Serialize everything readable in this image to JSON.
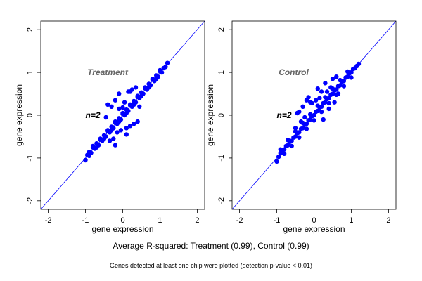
{
  "figure": {
    "subtitle": "Average R-squared: Treatment (0.99), Control (0.99)",
    "footnote": "Genes detected at least one chip were plotted (detection p-value < 0.01)"
  },
  "chart_data": [
    {
      "type": "scatter",
      "title": "",
      "xlabel": "gene expression",
      "ylabel": "gene expression",
      "xlim": [
        -2.2,
        2.2
      ],
      "ylim": [
        -2.2,
        2.2
      ],
      "xticks": [
        -2,
        -1,
        0,
        1,
        2
      ],
      "yticks": [
        -2,
        -1,
        0,
        1,
        2
      ],
      "grid": false,
      "reference_line": {
        "slope": 1,
        "intercept": 0,
        "color": "#0000ff"
      },
      "marker_color": "#0000ff",
      "annotations": [
        {
          "text": "Treatment",
          "x": -0.95,
          "y": 1.0,
          "color": "#666666",
          "style": "bold-italic"
        },
        {
          "text": "n=2",
          "x": -1.0,
          "y": 0.0,
          "color": "#000000",
          "style": "bold-italic"
        }
      ],
      "series": [
        {
          "x": [
            -1.0,
            -0.95,
            -0.9,
            -0.85,
            -0.8,
            -0.75,
            -0.7,
            -0.65,
            -0.6,
            -0.55,
            -0.5,
            -0.45,
            -0.4,
            -0.35,
            -0.3,
            -0.25,
            -0.2,
            -0.15,
            -0.1,
            -0.05,
            0.0,
            0.05,
            0.1,
            0.15,
            0.2,
            0.25,
            0.3,
            0.35,
            0.4,
            0.45,
            0.5,
            0.55,
            0.6,
            0.65,
            0.7,
            0.75,
            0.8,
            0.85,
            0.9,
            0.95,
            1.0,
            1.05,
            1.1,
            1.15,
            1.2,
            -0.9,
            -0.8,
            -0.7,
            -0.6,
            -0.5,
            -0.4,
            -0.3,
            -0.2,
            -0.1,
            0.0,
            0.1,
            0.2,
            0.3,
            0.4,
            0.5,
            0.6,
            0.7,
            0.8,
            0.9,
            1.0,
            -0.2,
            0.2,
            -0.3,
            0.3,
            -0.1,
            0.1,
            -0.4,
            0.4,
            -0.25,
            0.15,
            0.05,
            -0.05,
            0.25,
            -0.15,
            0.35,
            -0.35,
            0.45,
            -0.45,
            0.0,
            0.1,
            -0.1,
            0.2,
            -0.2
          ],
          "y": [
            -1.05,
            -0.93,
            -0.86,
            -0.88,
            -0.75,
            -0.78,
            -0.66,
            -0.7,
            -0.57,
            -0.6,
            -0.47,
            -0.5,
            -0.37,
            -0.4,
            -0.27,
            -0.3,
            -0.17,
            -0.2,
            -0.07,
            -0.1,
            0.03,
            0.0,
            0.13,
            0.1,
            0.23,
            0.2,
            0.33,
            0.3,
            0.43,
            0.4,
            0.53,
            0.5,
            0.63,
            0.6,
            0.73,
            0.7,
            0.83,
            0.8,
            0.93,
            0.9,
            1.03,
            1.0,
            1.1,
            1.13,
            1.22,
            -0.95,
            -0.72,
            -0.75,
            -0.55,
            -0.55,
            -0.35,
            -0.35,
            -0.15,
            -0.15,
            0.05,
            0.05,
            0.25,
            0.25,
            0.45,
            0.45,
            0.65,
            0.65,
            0.85,
            0.85,
            1.05,
            0.35,
            -0.25,
            0.2,
            -0.2,
            0.5,
            -0.45,
            0.25,
            -0.15,
            -0.55,
            0.55,
            0.3,
            -0.35,
            0.6,
            -0.4,
            0.65,
            -0.6,
            0.2,
            -0.05,
            0.18,
            -0.3,
            0.15,
            0.55,
            -0.7
          ]
        }
      ]
    },
    {
      "type": "scatter",
      "title": "",
      "xlabel": "gene expression",
      "ylabel": "gene expression",
      "xlim": [
        -2.2,
        2.2
      ],
      "ylim": [
        -2.2,
        2.2
      ],
      "xticks": [
        -2,
        -1,
        0,
        1,
        2
      ],
      "yticks": [
        -2,
        -1,
        0,
        1,
        2
      ],
      "grid": false,
      "reference_line": {
        "slope": 1,
        "intercept": 0,
        "color": "#0000ff"
      },
      "marker_color": "#0000ff",
      "annotations": [
        {
          "text": "Control",
          "x": -0.95,
          "y": 1.0,
          "color": "#666666",
          "style": "bold-italic"
        },
        {
          "text": "n=2",
          "x": -1.0,
          "y": 0.0,
          "color": "#000000",
          "style": "bold-italic"
        }
      ],
      "series": [
        {
          "x": [
            -1.0,
            -0.95,
            -0.9,
            -0.85,
            -0.8,
            -0.75,
            -0.7,
            -0.65,
            -0.6,
            -0.55,
            -0.5,
            -0.45,
            -0.4,
            -0.35,
            -0.3,
            -0.25,
            -0.2,
            -0.15,
            -0.1,
            -0.05,
            0.0,
            0.05,
            0.1,
            0.15,
            0.2,
            0.25,
            0.3,
            0.35,
            0.4,
            0.45,
            0.5,
            0.55,
            0.6,
            0.65,
            0.7,
            0.75,
            0.8,
            0.85,
            0.9,
            0.95,
            1.0,
            1.05,
            1.1,
            1.15,
            1.2,
            -0.9,
            -0.8,
            -0.7,
            -0.6,
            -0.5,
            -0.4,
            -0.3,
            -0.2,
            -0.1,
            0.0,
            0.1,
            0.2,
            0.3,
            0.4,
            0.5,
            0.6,
            0.7,
            0.8,
            0.9,
            1.0,
            -0.45,
            -0.4,
            -0.3,
            -0.2,
            -0.15,
            0.1,
            0.2,
            0.3,
            0.5,
            0.6,
            0.65,
            -0.25,
            0.15,
            -0.05,
            0.35,
            -0.35,
            0.45,
            0.05,
            0.25,
            -0.1,
            0.4,
            0.55,
            -0.5
          ],
          "y": [
            -1.08,
            -0.97,
            -0.89,
            -0.85,
            -0.8,
            -0.72,
            -0.7,
            -0.62,
            -0.6,
            -0.52,
            -0.5,
            -0.42,
            -0.4,
            -0.32,
            -0.3,
            -0.22,
            -0.2,
            -0.12,
            -0.1,
            -0.02,
            0.0,
            0.08,
            0.1,
            0.18,
            0.2,
            0.28,
            0.3,
            0.38,
            0.4,
            0.48,
            0.5,
            0.58,
            0.6,
            0.68,
            0.7,
            0.78,
            0.8,
            0.88,
            0.9,
            0.98,
            1.0,
            1.08,
            1.1,
            1.15,
            1.2,
            -0.8,
            -0.9,
            -0.58,
            -0.72,
            -0.38,
            -0.52,
            -0.18,
            -0.32,
            0.02,
            -0.12,
            0.22,
            0.08,
            0.42,
            0.28,
            0.62,
            0.48,
            0.82,
            0.68,
            1.02,
            0.88,
            0.05,
            0.08,
            0.2,
            0.35,
            0.42,
            0.62,
            0.55,
            0.75,
            0.85,
            0.9,
            0.5,
            -0.05,
            0.4,
            0.28,
            0.55,
            -0.15,
            0.65,
            0.35,
            -0.1,
            0.3,
            0.15,
            0.3,
            -0.3
          ]
        }
      ]
    }
  ]
}
